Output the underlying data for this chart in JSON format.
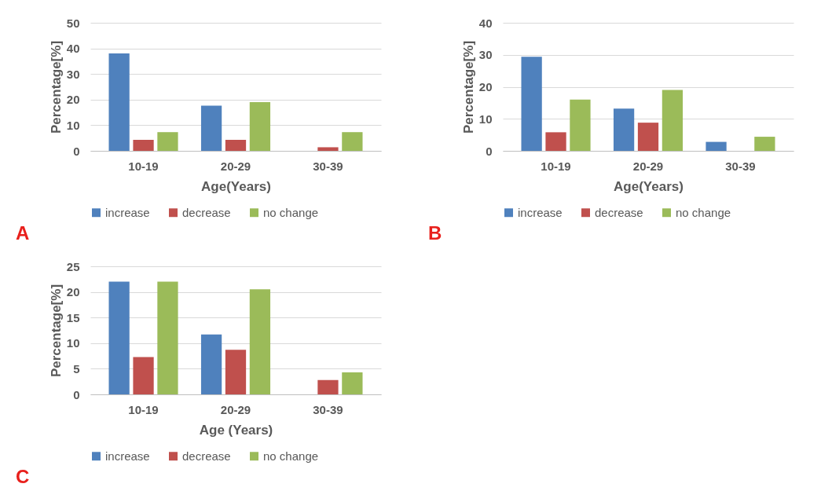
{
  "chart_data": [
    {
      "type": "bar",
      "categories": [
        "10-19",
        "20-29",
        "30-39"
      ],
      "xlabel": "Age(Years)",
      "ylabel": "Percentage[%]",
      "ylim": [
        0,
        50
      ],
      "yticks": [
        0,
        10,
        20,
        30,
        40,
        50
      ],
      "grid": "y",
      "legend": "bottom",
      "annotations": [
        "A"
      ],
      "series": [
        {
          "name": "increase",
          "color": "#4f81bd",
          "values": [
            38,
            17.6,
            0
          ]
        },
        {
          "name": "decrease",
          "color": "#c0504d",
          "values": [
            4.3,
            4.3,
            1.4
          ]
        },
        {
          "name": "no change",
          "color": "#9bbb59",
          "values": [
            7.3,
            19.0,
            7.3
          ]
        }
      ]
    },
    {
      "type": "bar",
      "categories": [
        "10-19",
        "20-29",
        "30-39"
      ],
      "xlabel": "Age(Years)",
      "ylabel": "Percentage[%]",
      "ylim": [
        0,
        40
      ],
      "yticks": [
        0,
        10,
        20,
        30,
        40
      ],
      "grid": "y",
      "legend": "bottom",
      "annotations": [
        "B"
      ],
      "series": [
        {
          "name": "increase",
          "color": "#4f81bd",
          "values": [
            29.4,
            13.2,
            2.8
          ]
        },
        {
          "name": "decrease",
          "color": "#c0504d",
          "values": [
            5.8,
            8.8,
            0
          ]
        },
        {
          "name": "no change",
          "color": "#9bbb59",
          "values": [
            16.0,
            19.0,
            4.4
          ]
        }
      ]
    },
    {
      "type": "bar",
      "categories": [
        "10-19",
        "20-29",
        "30-39"
      ],
      "xlabel": "Age (Years)",
      "ylabel": "Percentage[%]",
      "ylim": [
        0,
        25
      ],
      "yticks": [
        0,
        5,
        10,
        15,
        20,
        25
      ],
      "grid": "y",
      "legend": "bottom",
      "annotations": [
        "C"
      ],
      "series": [
        {
          "name": "increase",
          "color": "#4f81bd",
          "values": [
            22.0,
            11.7,
            0
          ]
        },
        {
          "name": "decrease",
          "color": "#c0504d",
          "values": [
            7.3,
            8.7,
            2.8
          ]
        },
        {
          "name": "no change",
          "color": "#9bbb59",
          "values": [
            22.0,
            20.5,
            4.3
          ]
        }
      ]
    }
  ]
}
